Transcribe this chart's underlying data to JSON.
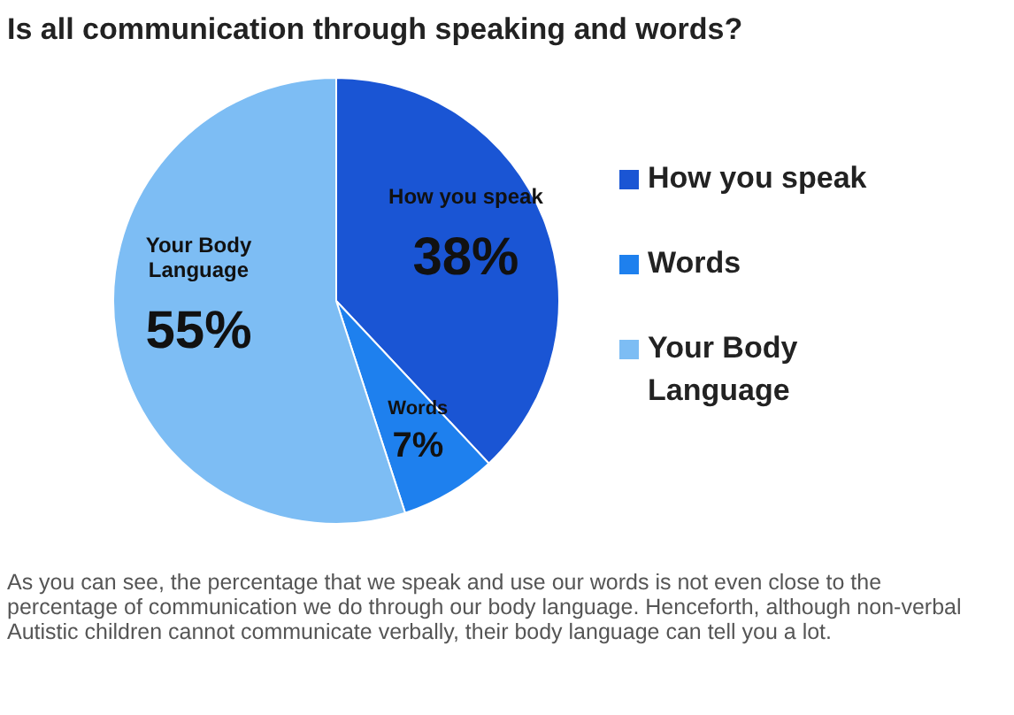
{
  "chart_data": {
    "type": "pie",
    "title": "Is all communication through speaking and words?",
    "categories": [
      "How you speak",
      "Words",
      "Your Body Language"
    ],
    "values": [
      38,
      7,
      55
    ],
    "colors": [
      "#1a55d4",
      "#1e80ee",
      "#7dbdf4"
    ],
    "value_labels": [
      "38%",
      "7%",
      "55%"
    ],
    "legend": "right",
    "annotations": [
      "As you can see, the percentage that we speak and use our words is not even close to the percentage of communication we do through our body language. Henceforth, although non-verbal Autistic children cannot communicate verbally, their body language can tell you a lot."
    ]
  }
}
